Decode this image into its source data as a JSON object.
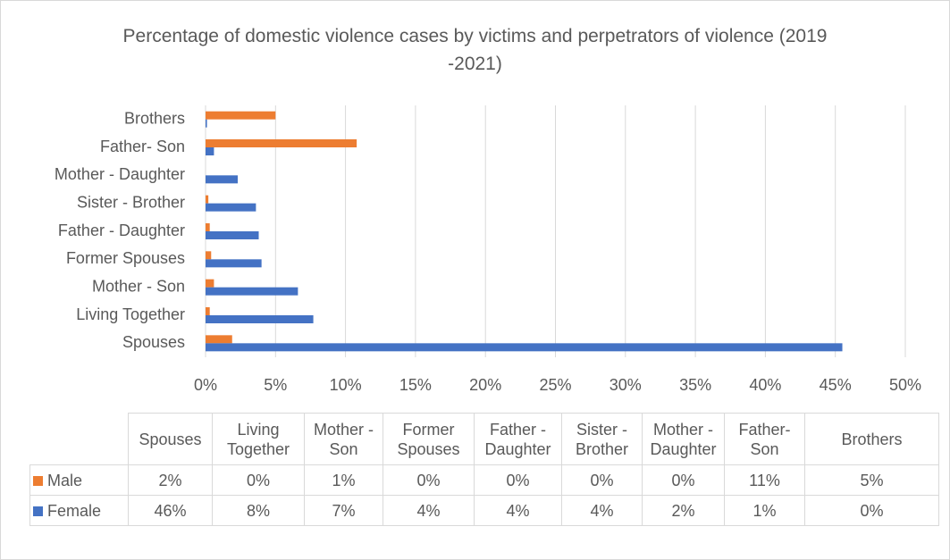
{
  "chart_data": {
    "type": "bar",
    "orientation": "horizontal",
    "title": "Percentage of domestic violence cases by victims and perpetrators of violence (2019 -2021)",
    "categories": [
      "Spouses",
      "Living Together",
      "Mother - Son",
      "Former Spouses",
      "Father - Daughter",
      "Sister - Brother",
      "Mother - Daughter",
      "Father- Son",
      "Brothers"
    ],
    "series": [
      {
        "name": "Male",
        "color": "#ed7d31",
        "values": [
          1.9,
          0.3,
          0.6,
          0.4,
          0.3,
          0.2,
          0,
          10.8,
          5.0
        ],
        "value_labels": [
          "2%",
          "0%",
          "1%",
          "0%",
          "0%",
          "0%",
          "0%",
          "11%",
          "5%"
        ]
      },
      {
        "name": "Female",
        "color": "#4472c4",
        "values": [
          45.5,
          7.7,
          6.6,
          4.0,
          3.8,
          3.6,
          2.3,
          0.6,
          0.1
        ],
        "value_labels": [
          "46%",
          "8%",
          "7%",
          "4%",
          "4%",
          "4%",
          "2%",
          "1%",
          "0%"
        ]
      }
    ],
    "xlim": [
      0,
      50
    ],
    "xticks": [
      {
        "value": 0,
        "label": "0%"
      },
      {
        "value": 5,
        "label": "5%"
      },
      {
        "value": 10,
        "label": "10%"
      },
      {
        "value": 15,
        "label": "15%"
      },
      {
        "value": 20,
        "label": "20%"
      },
      {
        "value": 25,
        "label": "25%"
      },
      {
        "value": 30,
        "label": "30%"
      },
      {
        "value": 35,
        "label": "35%"
      },
      {
        "value": 40,
        "label": "40%"
      },
      {
        "value": 45,
        "label": "45%"
      },
      {
        "value": 50,
        "label": "50%"
      }
    ],
    "grid": true
  }
}
